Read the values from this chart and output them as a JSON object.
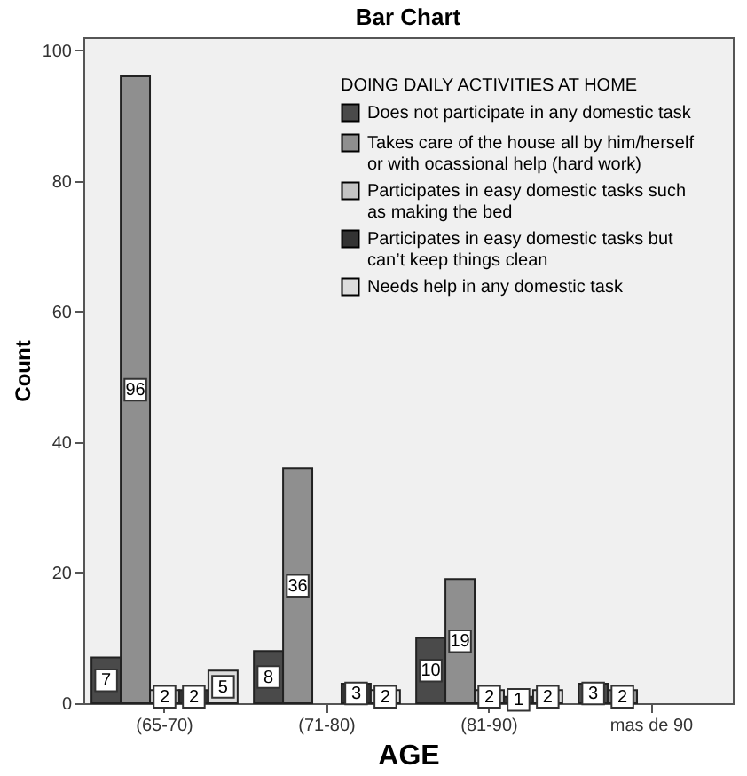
{
  "chart_data": {
    "type": "bar",
    "title": "Bar Chart",
    "xlabel": "AGE",
    "ylabel": "Count",
    "legend_title": "DOING DAILY ACTIVITIES AT HOME",
    "categories": [
      "(65-70)",
      "(71-80)",
      "(81-90)",
      "mas de 90"
    ],
    "series": [
      {
        "name": "Does not participate in any domestic task",
        "color": "#4a4a4a",
        "values": [
          7,
          8,
          10,
          3
        ]
      },
      {
        "name": "Takes care of the house all by him/herself or with ocassional help (hard work)",
        "color": "#8f8f8f",
        "values": [
          96,
          36,
          19,
          2
        ]
      },
      {
        "name": "Participates in easy domestic tasks such as making the bed",
        "color": "#c4c4c4",
        "values": [
          2,
          null,
          2,
          null
        ]
      },
      {
        "name": "Participates in easy domestic tasks but can’t keep things clean",
        "color": "#333333",
        "values": [
          2,
          3,
          1,
          null
        ]
      },
      {
        "name": "Needs help in any domestic task",
        "color": "#dcdcdc",
        "values": [
          5,
          2,
          2,
          null
        ]
      }
    ],
    "ylim": [
      0,
      102
    ],
    "yticks": [
      0,
      20,
      40,
      60,
      80,
      100
    ],
    "legend": "top right",
    "data_labels": true
  }
}
